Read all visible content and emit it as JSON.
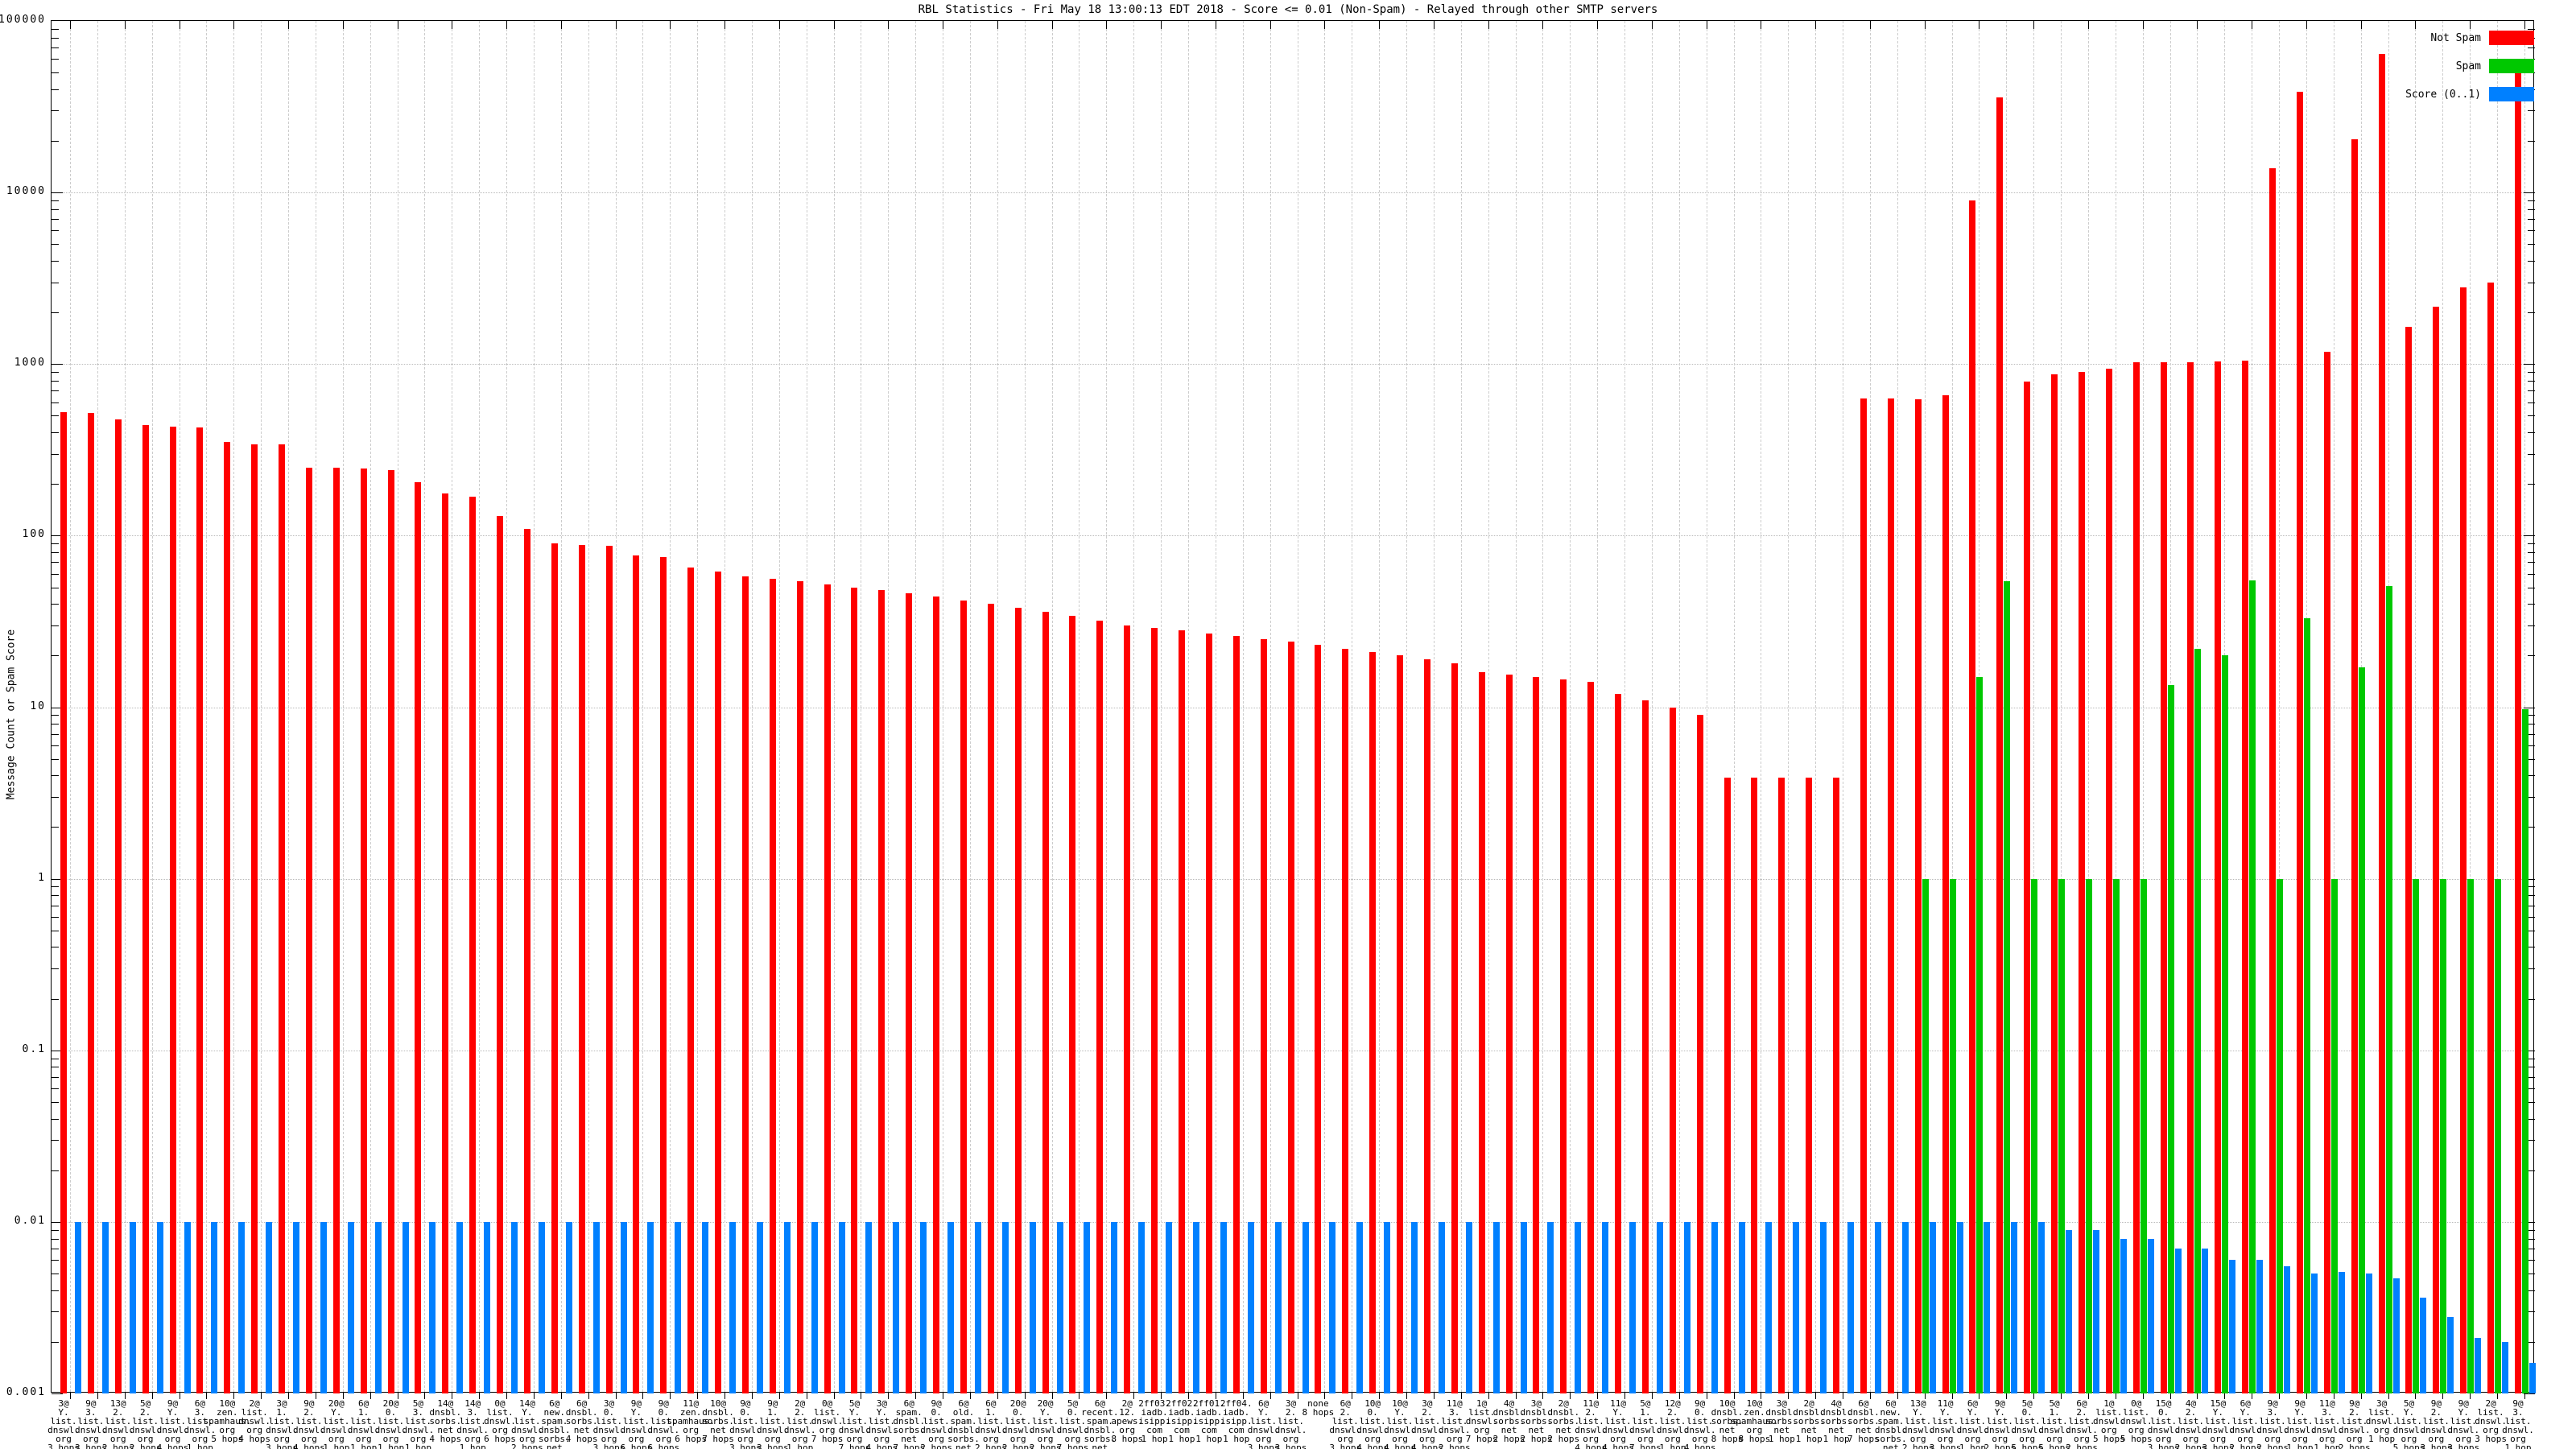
{
  "title": "RBL Statistics - Fri May 18 13:00:13 EDT 2018 - Score <= 0.01 (Non-Spam) - Relayed through other SMTP servers",
  "y_axis": {
    "label": "Message Count or Spam Score",
    "ticks": [
      "100000",
      "10000",
      "1000",
      "100",
      "10",
      "1",
      "0.1",
      "0.01",
      "0.001"
    ]
  },
  "legend": [
    {
      "label": "Not Spam",
      "color": "#ff0000"
    },
    {
      "label": "Spam",
      "color": "#00c800"
    },
    {
      "label": "Score (0..1)",
      "color": "#0080ff"
    }
  ],
  "chart_data": {
    "type": "bar",
    "scale": "log",
    "ylim": [
      0.001,
      100000
    ],
    "grid": true,
    "legend_position": "top-right",
    "categories": [
      "3@/Y./list./dnswl./org/3 hops",
      "9@/3./list./dnswl./org/3 hops",
      "13@/2./list./dnswl./org/2 hops",
      "5@/2./list./dnswl./org/2 hops",
      "9@/Y./list./dnswl./org/4 hops",
      "6@/3./list./dnswl./org/1 hop",
      "10@/zen./spamhaus./org/5 hops",
      "2@/list./dnswl./org/4 hops",
      "3@/1./list./dnswl./org/3 hops",
      "9@/2./list./dnswl./org/4 hops",
      "20@/Y./list./dnswl./org/1 hop",
      "6@/1./list./dnswl./org/1 hop",
      "20@/0./list./dnswl./org/1 hop",
      "5@/3./list./dnswl./org/1 hop",
      "14@/dnsbl./sorbs./net/4 hops",
      "14@/3./list./dnswl./org/1 hop",
      "0@/list./dnswl./org/6 hops",
      "14@/Y./list./dnswl./org/2 hops",
      "6@/new./spam./dnsbl./sorbs./net/4 hops",
      "6@/dnsbl./sorbs./net/4 hops",
      "3@/0./list./dnswl./org/3 hops",
      "9@/Y./list./dnswl./org/6 hops",
      "9@/0./list./dnswl./org/6 hops",
      "11@/zen./spamhaus./org/6 hops",
      "10@/dnsbl./sorbs./net/7 hops",
      "9@/0./list./dnswl./org/3 hops",
      "9@/1./list./dnswl./org/3 hops",
      "2@/2./list./dnswl./org/1 hop",
      "0@/list./dnswl./org/7 hops",
      "5@/Y./list./dnswl./org/7 hops",
      "3@/Y./list./dnswl./org/4 hops",
      "6@/spam./dnsbl./sorbs./net/7 hops",
      "9@/0./list./dnswl./org/2 hops",
      "6@/old./spam./dnsbl./sorbs./net/7 hops",
      "6@/1./list./dnswl./org/2 hops",
      "20@/0./list./dnswl./org/2 hops",
      "20@/Y./list./dnswl./org/2 hops",
      "5@/0./list./dnswl./org/7 hops",
      "6@/recent./spam./dnsbl./sorbs./net/7 hops",
      "2@/12./apews./org/8 hops",
      "2ff03./iadb./isipp./com/1 hop",
      "2ff02./iadb./isipp./com/1 hop",
      "2ff01./iadb./isipp./com/1 hop",
      "2ff04./iadb./isipp./com/1 hop",
      "6@/Y./list./dnswl./org/3 hops",
      "3@/2./list./dnswl./org/3 hops",
      "none/8 hops",
      "6@/2./list./dnswl./org/3 hops",
      "10@/0./list./dnswl./org/4 hops",
      "10@/Y./list./dnswl./org/4 hops",
      "3@/2./list./dnswl./org/4 hops",
      "11@/3./list./dnswl./org/2 hops",
      "1@/list./dnswl./org/7 hops",
      "4@/dnsbl./sorbs./net/2 hops",
      "3@/dnsbl./sorbs./net/2 hops",
      "2@/dnsbl./sorbs./net/2 hops",
      "11@/2./list./dnswl./org/4 hops",
      "11@/Y./list./dnswl./org/4 hops",
      "5@/1./list./dnswl./org/7 hops",
      "12@/2./list./dnswl./org/1 hop",
      "9@/0./list./dnswl./org/4 hops",
      "10@/dnsbl./sorbs./net/8 hops",
      "10@/zen./spamhaus./org/8 hops",
      "3@/dnsbl./sorbs./net/1 hop",
      "2@/dnsbl./sorbs./net/1 hop",
      "4@/dnsbl./sorbs./net/1 hop",
      "6@/dnsbl./sorbs./net/7 hops",
      "6@/new./spam./dnsbl./sorbs./net/7 hops",
      "13@/Y./list./dnswl./org/2 hops",
      "11@/Y./list./dnswl./org/3 hops",
      "6@/Y./list./dnswl./org/1 hop",
      "9@/Y./list./dnswl./org/2 hops",
      "5@/0./list./dnswl./org/5 hops",
      "5@/1./list./dnswl./org/5 hops",
      "6@/2./list./dnswl./org/2 hops",
      "1@/list./dnswl./org/5 hops",
      "0@/list./dnswl./org/5 hops",
      "15@/0./list./dnswl./org/3 hops",
      "4@/2./list./dnswl./org/2 hops",
      "15@/Y./list./dnswl./org/3 hops",
      "6@/Y./list./dnswl./org/2 hops",
      "9@/3./list./dnswl./org/2 hops",
      "9@/Y./list./dnswl./org/1 hop",
      "11@/3./list./dnswl./org/1 hop",
      "9@/2./list./dnswl./org/2 hops",
      "3@/list./dnswl./org/1 hop",
      "5@/Y./list./dnswl./org/5 hops",
      "9@/2./list./dnswl./org/3 hops",
      "9@/Y./list./dnswl./org/3 hops",
      "2@/list./dnswl./org/3 hops",
      "9@/3./list./dnswl./org/1 hop"
    ],
    "series": [
      {
        "name": "Not Spam",
        "color": "#ff0000",
        "values": [
          525,
          520,
          475,
          440,
          430,
          425,
          350,
          340,
          340,
          250,
          250,
          247,
          242,
          205,
          176,
          168,
          130,
          109,
          90,
          88,
          87,
          77,
          75,
          65,
          62,
          58,
          56,
          54,
          52,
          50,
          48,
          46,
          44,
          42,
          40,
          38,
          36,
          34,
          32,
          30,
          29,
          28,
          27,
          26,
          25,
          24,
          23,
          22,
          21,
          20,
          19,
          18,
          16,
          15.5,
          15,
          14.5,
          14,
          12,
          11,
          10,
          9,
          3.9,
          3.9,
          3.9,
          3.9,
          3.9,
          630,
          630,
          620,
          660,
          9000,
          36000,
          790,
          875,
          900,
          940,
          1020,
          1020,
          1030,
          1040,
          1050,
          13800,
          38500,
          1180,
          20500,
          64500,
          1650,
          2150,
          2800,
          3000,
          55000
        ]
      },
      {
        "name": "Spam",
        "color": "#00c800",
        "values": [
          0,
          0,
          0,
          0,
          0,
          0,
          0,
          0,
          0,
          0,
          0,
          0,
          0,
          0,
          0,
          0,
          0,
          0,
          0,
          0,
          0,
          0,
          0,
          0,
          0,
          0,
          0,
          0,
          0,
          0,
          0,
          0,
          0,
          0,
          0,
          0,
          0,
          0,
          0,
          0,
          0,
          0,
          0,
          0,
          0,
          0,
          0,
          0,
          0,
          0,
          0,
          0,
          0,
          0,
          0,
          0,
          0,
          0,
          0,
          0,
          0,
          0,
          0,
          0,
          0,
          0,
          0,
          0,
          1,
          1,
          15,
          54,
          1,
          1,
          1,
          1,
          1,
          13.5,
          22,
          20,
          55,
          1,
          33,
          1,
          17,
          51,
          1,
          1,
          1,
          1,
          9.7
        ]
      },
      {
        "name": "Score (0..1)",
        "color": "#0080ff",
        "values": [
          0.01,
          0.01,
          0.01,
          0.01,
          0.01,
          0.01,
          0.01,
          0.01,
          0.01,
          0.01,
          0.01,
          0.01,
          0.01,
          0.01,
          0.01,
          0.01,
          0.01,
          0.01,
          0.01,
          0.01,
          0.01,
          0.01,
          0.01,
          0.01,
          0.01,
          0.01,
          0.01,
          0.01,
          0.01,
          0.01,
          0.01,
          0.01,
          0.01,
          0.01,
          0.01,
          0.01,
          0.01,
          0.01,
          0.01,
          0.01,
          0.01,
          0.01,
          0.01,
          0.01,
          0.01,
          0.01,
          0.01,
          0.01,
          0.01,
          0.01,
          0.01,
          0.01,
          0.01,
          0.01,
          0.01,
          0.01,
          0.01,
          0.01,
          0.01,
          0.01,
          0.01,
          0.01,
          0.01,
          0.01,
          0.01,
          0.01,
          0.01,
          0.01,
          0.01,
          0.01,
          0.01,
          0.01,
          0.01,
          0.009,
          0.009,
          0.008,
          0.008,
          0.007,
          0.007,
          0.006,
          0.006,
          0.0055,
          0.005,
          0.0051,
          0.005,
          0.0047,
          0.0036,
          0.0028,
          0.0021,
          0.002,
          0.0015
        ]
      }
    ]
  }
}
